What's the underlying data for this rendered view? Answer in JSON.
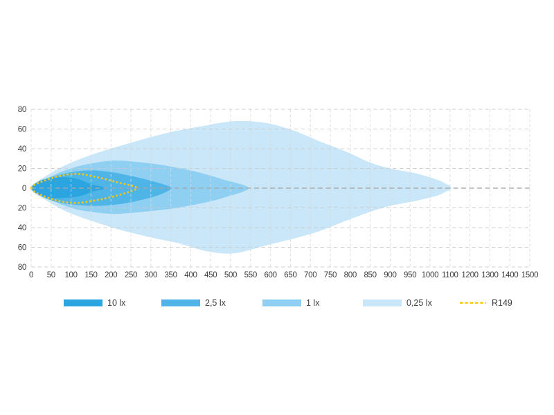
{
  "chart_data": {
    "type": "area",
    "title": "",
    "xlabel": "",
    "ylabel": "",
    "description": "Beam light distribution diagram with nested illuminance contours (lux) and R149 reference outline",
    "x_axis": {
      "tick_labels": [
        "0",
        "50",
        "100",
        "150",
        "200",
        "250",
        "300",
        "350",
        "400",
        "450",
        "500",
        "550",
        "600",
        "650",
        "700",
        "750",
        "800",
        "850",
        "900",
        "950",
        "1000",
        "1100",
        "1200",
        "1300",
        "1400",
        "1500"
      ],
      "tick_values": [
        0,
        50,
        100,
        150,
        200,
        250,
        300,
        350,
        400,
        450,
        500,
        550,
        600,
        650,
        700,
        750,
        800,
        850,
        900,
        950,
        1000,
        1100,
        1200,
        1300,
        1400,
        1500
      ],
      "range_note": "50 per gridline up to 1000, then 100 per gridline",
      "grid": true
    },
    "y_axis": {
      "tick_labels": [
        "80",
        "60",
        "40",
        "20",
        "0",
        "20",
        "40",
        "60",
        "80"
      ],
      "tick_values": [
        80,
        60,
        40,
        20,
        0,
        -20,
        -40,
        -60,
        -80
      ],
      "grid": true
    },
    "grid_style": {
      "vertical_color": "#d8d8d8",
      "horizontal_color": "#c9c9c9",
      "zero_line_color": "#a5a5a5",
      "dashed": true
    },
    "series": [
      {
        "name": "0,25 lx",
        "color": "#C9E7F8",
        "kind": "filled-contour",
        "points": [
          [
            0,
            0
          ],
          [
            40,
            13
          ],
          [
            90,
            24
          ],
          [
            160,
            35
          ],
          [
            250,
            46
          ],
          [
            340,
            56
          ],
          [
            430,
            63
          ],
          [
            510,
            68
          ],
          [
            590,
            66
          ],
          [
            660,
            58
          ],
          [
            720,
            48
          ],
          [
            790,
            37
          ],
          [
            850,
            26
          ],
          [
            900,
            20
          ],
          [
            964,
            15
          ],
          [
            1030,
            9
          ],
          [
            1075,
            5
          ],
          [
            1108,
            0
          ],
          [
            1075,
            -4
          ],
          [
            1030,
            -8
          ],
          [
            964,
            -13
          ],
          [
            900,
            -18
          ],
          [
            850,
            -24
          ],
          [
            790,
            -33
          ],
          [
            720,
            -44
          ],
          [
            650,
            -52
          ],
          [
            590,
            -58
          ],
          [
            510,
            -66
          ],
          [
            440,
            -64
          ],
          [
            370,
            -56
          ],
          [
            300,
            -50
          ],
          [
            220,
            -42
          ],
          [
            150,
            -33
          ],
          [
            90,
            -24
          ],
          [
            40,
            -13
          ]
        ]
      },
      {
        "name": "1 lx",
        "color": "#8FD0F2",
        "kind": "filled-contour",
        "points": [
          [
            0,
            0
          ],
          [
            50,
            12
          ],
          [
            100,
            20
          ],
          [
            150,
            25
          ],
          [
            210,
            28
          ],
          [
            280,
            26
          ],
          [
            350,
            22
          ],
          [
            420,
            16
          ],
          [
            480,
            9
          ],
          [
            545,
            0
          ],
          [
            480,
            -10
          ],
          [
            420,
            -16
          ],
          [
            350,
            -21
          ],
          [
            280,
            -24
          ],
          [
            210,
            -26
          ],
          [
            150,
            -24
          ],
          [
            100,
            -20
          ],
          [
            50,
            -12
          ]
        ]
      },
      {
        "name": "2,5 lx",
        "color": "#4FB5E7",
        "kind": "filled-contour",
        "points": [
          [
            0,
            0
          ],
          [
            35,
            9
          ],
          [
            75,
            14
          ],
          [
            115,
            17
          ],
          [
            155,
            18
          ],
          [
            205,
            16
          ],
          [
            255,
            12
          ],
          [
            305,
            7
          ],
          [
            338,
            3
          ],
          [
            352,
            0
          ],
          [
            338,
            -4
          ],
          [
            305,
            -9
          ],
          [
            255,
            -14
          ],
          [
            205,
            -17
          ],
          [
            155,
            -18
          ],
          [
            115,
            -17
          ],
          [
            75,
            -15
          ],
          [
            35,
            -10
          ]
        ]
      },
      {
        "name": "10 lx",
        "color": "#2BA5DF",
        "kind": "filled-contour",
        "points": [
          [
            0,
            0
          ],
          [
            20,
            7
          ],
          [
            45,
            10
          ],
          [
            80,
            11
          ],
          [
            110,
            10
          ],
          [
            132,
            7
          ],
          [
            150,
            4
          ],
          [
            186,
            0
          ],
          [
            150,
            -4
          ],
          [
            132,
            -7
          ],
          [
            110,
            -9
          ],
          [
            80,
            -10
          ],
          [
            45,
            -10
          ],
          [
            20,
            -7
          ]
        ]
      },
      {
        "name": "R149",
        "color": "#FBC70F",
        "kind": "dotted-outline",
        "points": [
          [
            0,
            0
          ],
          [
            55,
            10.5
          ],
          [
            110,
            14.5
          ],
          [
            160,
            11.5
          ],
          [
            215,
            6
          ],
          [
            265,
            0
          ],
          [
            215,
            -7.5
          ],
          [
            160,
            -12.5
          ],
          [
            110,
            -15
          ],
          [
            55,
            -11.5
          ]
        ]
      }
    ],
    "legend": [
      {
        "label": "10 lx",
        "color": "#2BA5DF",
        "type": "swatch"
      },
      {
        "label": "2,5 lx",
        "color": "#4FB5E7",
        "type": "swatch"
      },
      {
        "label": "1 lx",
        "color": "#8FD0F2",
        "type": "swatch"
      },
      {
        "label": "0,25 lx",
        "color": "#C9E7F8",
        "type": "swatch"
      },
      {
        "label": "R149",
        "color": "#FBC70F",
        "type": "dashed-line"
      }
    ],
    "legend_position": "bottom",
    "text_color": "#3c3c3c"
  }
}
